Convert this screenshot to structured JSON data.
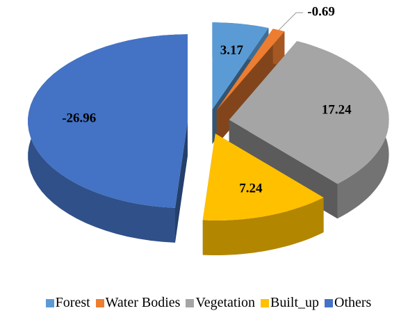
{
  "chart_data": {
    "type": "pie",
    "categories": [
      "Forest",
      "Water Bodies",
      "Vegetation",
      "Built_up",
      "Others"
    ],
    "values": [
      3.17,
      -0.69,
      17.24,
      7.24,
      -26.96
    ],
    "colors": [
      "#5b9bd5",
      "#ed7d31",
      "#a5a5a5",
      "#ffc000",
      "#4472c4"
    ],
    "legend": "bottom"
  }
}
